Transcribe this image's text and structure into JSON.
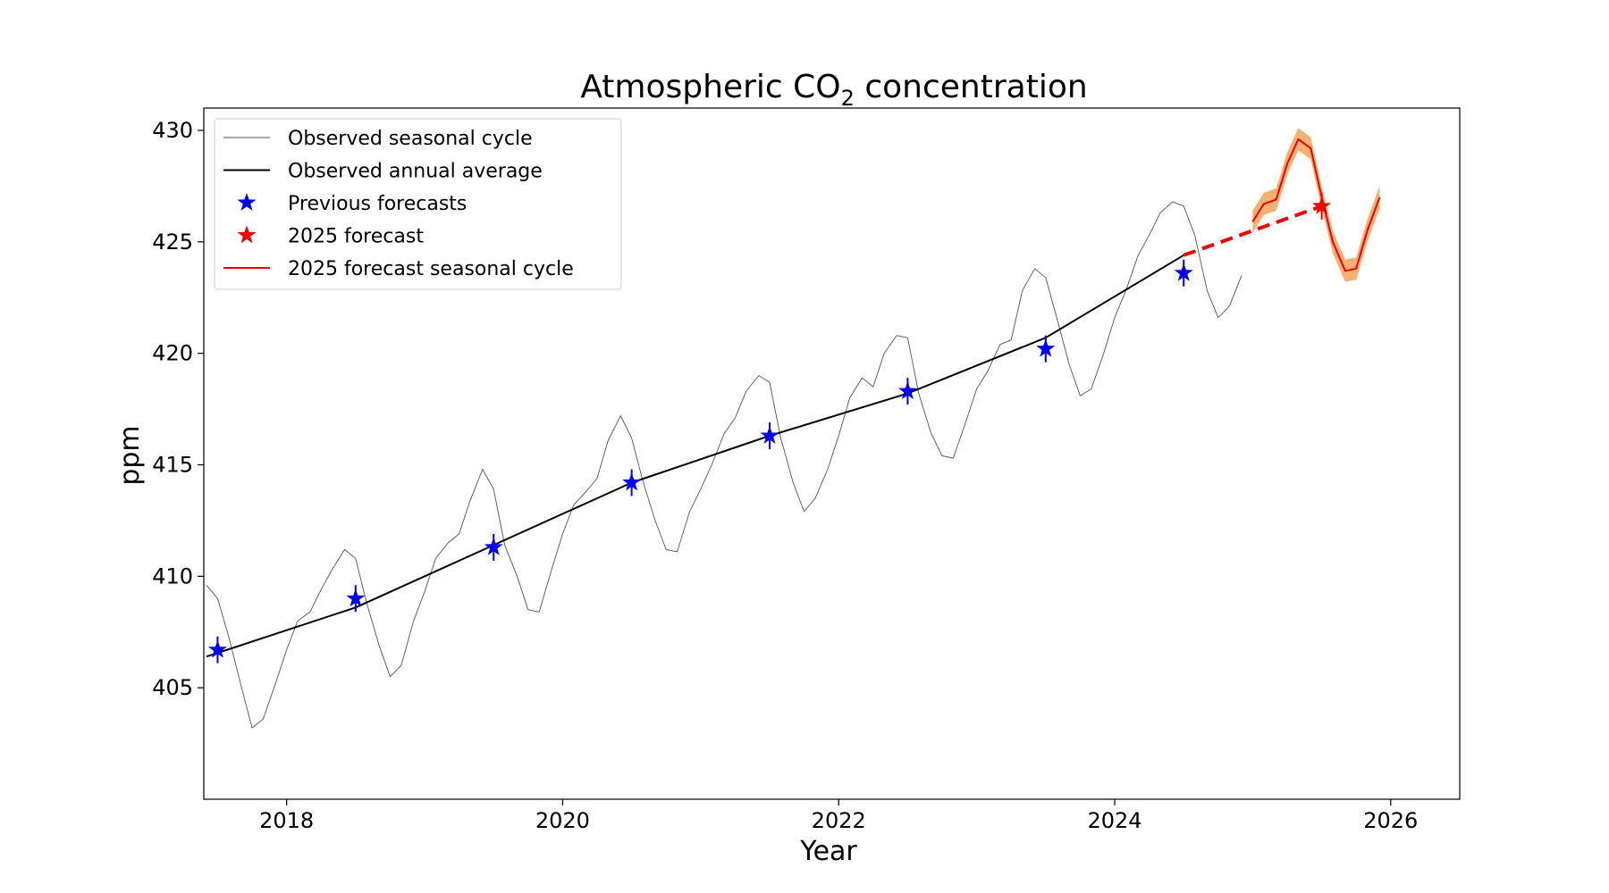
{
  "chart_data": {
    "type": "line",
    "title": "Atmospheric CO",
    "title_subscript": "2",
    "title_suffix": " concentration",
    "xlabel": "Year",
    "ylabel": "ppm",
    "xlim": [
      2017.4,
      2026.5
    ],
    "ylim": [
      400.0,
      431.0
    ],
    "xticks": [
      2018,
      2020,
      2022,
      2024,
      2026
    ],
    "yticks": [
      405,
      410,
      415,
      420,
      425,
      430
    ],
    "grid": false,
    "legend_position": "top-left",
    "series": [
      {
        "name": "Observed seasonal cycle",
        "kind": "line",
        "color": "#555555",
        "x": [
          2017.42,
          2017.5,
          2017.58,
          2017.67,
          2017.75,
          2017.83,
          2017.92,
          2018.0,
          2018.08,
          2018.17,
          2018.25,
          2018.33,
          2018.42,
          2018.5,
          2018.58,
          2018.67,
          2018.75,
          2018.83,
          2018.92,
          2019.0,
          2019.08,
          2019.17,
          2019.25,
          2019.33,
          2019.42,
          2019.5,
          2019.58,
          2019.67,
          2019.75,
          2019.83,
          2019.92,
          2020.0,
          2020.08,
          2020.17,
          2020.25,
          2020.33,
          2020.42,
          2020.5,
          2020.58,
          2020.67,
          2020.75,
          2020.83,
          2020.92,
          2021.0,
          2021.08,
          2021.17,
          2021.25,
          2021.33,
          2021.42,
          2021.5,
          2021.58,
          2021.67,
          2021.75,
          2021.83,
          2021.92,
          2022.0,
          2022.08,
          2022.17,
          2022.25,
          2022.33,
          2022.42,
          2022.5,
          2022.58,
          2022.67,
          2022.75,
          2022.83,
          2022.92,
          2023.0,
          2023.08,
          2023.17,
          2023.25,
          2023.33,
          2023.42,
          2023.5,
          2023.58,
          2023.67,
          2023.75,
          2023.83,
          2023.92,
          2024.0,
          2024.08,
          2024.17,
          2024.25,
          2024.33,
          2024.42,
          2024.5,
          2024.58,
          2024.67,
          2024.75,
          2024.83,
          2024.92
        ],
        "values": [
          409.6,
          409.0,
          407.3,
          405.1,
          403.2,
          403.6,
          405.2,
          406.7,
          408.0,
          408.4,
          409.4,
          410.3,
          411.2,
          410.8,
          408.8,
          406.9,
          405.5,
          406.0,
          408.0,
          409.3,
          410.8,
          411.5,
          411.9,
          413.4,
          414.8,
          413.9,
          411.4,
          410.0,
          408.5,
          408.4,
          410.3,
          411.9,
          413.2,
          413.8,
          414.4,
          416.1,
          417.2,
          416.2,
          414.3,
          412.5,
          411.2,
          411.1,
          412.9,
          413.9,
          415.0,
          416.4,
          417.1,
          418.3,
          419.0,
          418.7,
          416.2,
          414.2,
          412.9,
          413.5,
          414.8,
          416.3,
          418.0,
          418.9,
          418.5,
          420.0,
          420.8,
          420.7,
          418.2,
          416.4,
          415.4,
          415.3,
          416.9,
          418.4,
          419.2,
          420.4,
          420.6,
          422.8,
          423.8,
          423.4,
          421.6,
          419.5,
          418.1,
          418.4,
          420.0,
          421.6,
          422.8,
          424.4,
          425.3,
          426.3,
          426.8,
          426.6,
          425.3,
          422.8,
          421.6,
          422.1,
          423.5
        ]
      },
      {
        "name": "Observed annual average",
        "kind": "line",
        "color": "#000000",
        "x": [
          2017.42,
          2018.5,
          2019.5,
          2020.5,
          2021.5,
          2022.5,
          2023.5,
          2024.5
        ],
        "values": [
          406.4,
          408.6,
          411.4,
          414.2,
          416.3,
          418.2,
          420.7,
          424.4
        ]
      },
      {
        "name": "Previous forecasts",
        "kind": "marker",
        "color": "#0000ee",
        "x": [
          2017.5,
          2018.5,
          2019.5,
          2020.5,
          2021.5,
          2022.5,
          2023.5,
          2024.5
        ],
        "values": [
          406.7,
          409.0,
          411.3,
          414.2,
          416.3,
          418.3,
          420.2,
          423.6
        ],
        "errors": [
          0.6,
          0.6,
          0.6,
          0.6,
          0.6,
          0.6,
          0.6,
          0.6
        ]
      },
      {
        "name": "2025 forecast",
        "kind": "marker",
        "color": "#ee0000",
        "x": [
          2025.5
        ],
        "values": [
          426.6
        ],
        "errors": [
          0.6
        ]
      },
      {
        "name": "2025 forecast seasonal cycle",
        "kind": "line",
        "color": "#ee0000",
        "band_color": "#f5a25a",
        "x": [
          2025.0,
          2025.08,
          2025.17,
          2025.25,
          2025.33,
          2025.42,
          2025.5,
          2025.58,
          2025.67,
          2025.75,
          2025.83,
          2025.92
        ],
        "values": [
          425.9,
          426.7,
          426.9,
          428.5,
          429.6,
          429.2,
          427.0,
          425.0,
          423.7,
          423.8,
          425.5,
          427.0
        ],
        "band": 0.5
      }
    ],
    "dashed_projection": {
      "color": "#ee0000",
      "x": [
        2024.5,
        2025.5
      ],
      "values": [
        424.4,
        426.6
      ]
    }
  }
}
